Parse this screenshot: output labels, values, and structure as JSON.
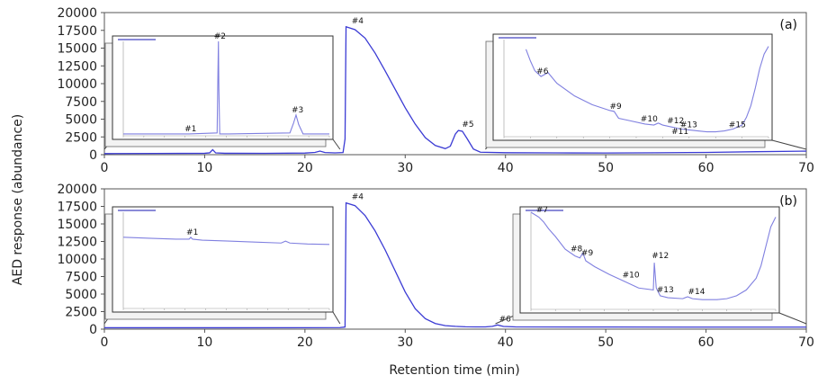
{
  "figure": {
    "ylabel": "AED response (abundance)",
    "xlabel": "Retention time (min)"
  },
  "chart_data": [
    {
      "type": "line",
      "panel_label": "(a)",
      "xlim": [
        0,
        70
      ],
      "ylim": [
        0,
        20000
      ],
      "xticks": [
        0,
        10,
        20,
        30,
        40,
        50,
        60,
        70
      ],
      "yticks": [
        0,
        2500,
        5000,
        7500,
        10000,
        12500,
        15000,
        17500,
        20000
      ],
      "series": [
        {
          "color": "#3b3bd4",
          "x": [
            0,
            5,
            10,
            10.5,
            10.8,
            11.1,
            12,
            16,
            20,
            21,
            21.5,
            22,
            23,
            23.8,
            24,
            24.1,
            25,
            26,
            27,
            28,
            29,
            30,
            31,
            32,
            33,
            34,
            34.5,
            35,
            35.3,
            35.7,
            36.2,
            36.8,
            37.5,
            40,
            45,
            50,
            55,
            60,
            65,
            70
          ],
          "y": [
            150,
            170,
            200,
            260,
            700,
            250,
            200,
            190,
            230,
            320,
            500,
            300,
            250,
            300,
            2200,
            18000,
            17600,
            16400,
            14300,
            11800,
            9200,
            6600,
            4300,
            2400,
            1300,
            850,
            1200,
            2900,
            3400,
            3300,
            2200,
            800,
            350,
            280,
            250,
            240,
            270,
            320,
            420,
            500
          ]
        }
      ],
      "peak_labels": [
        {
          "label": "#4",
          "x": 24.3,
          "y": 18000
        },
        {
          "label": "#5",
          "x": 35.3,
          "y": 3400
        }
      ],
      "insets": [
        {
          "xlim": [
            0,
            23.5
          ],
          "source_xrange": [
            0,
            23.5
          ],
          "x": [
            0,
            7.5,
            10.7,
            10.8,
            10.85,
            10.9,
            11.0,
            12,
            19.0,
            19.4,
            19.7,
            20.0,
            20.5,
            23.5
          ],
          "y": [
            0.02,
            0.02,
            0.03,
            0.7,
            1.0,
            0.5,
            0.02,
            0.02,
            0.03,
            0.13,
            0.22,
            0.12,
            0.02,
            0.02
          ],
          "labels": [
            {
              "label": "#1",
              "x": 7.5,
              "y": 0.02
            },
            {
              "label": "#2",
              "x": 10.85,
              "y": 1.0
            },
            {
              "label": "#3",
              "x": 19.7,
              "y": 0.22
            }
          ]
        },
        {
          "xlim": [
            40,
            70
          ],
          "source_xrange": [
            38,
            70
          ],
          "x": [
            42.5,
            43.0,
            43.5,
            44.2,
            45.0,
            46.0,
            48.0,
            50.0,
            52.0,
            52.5,
            53.0,
            54.0,
            56.0,
            57.0,
            57.5,
            58.0,
            59.0,
            60.0,
            62.0,
            63.0,
            64.0,
            65.0,
            66.0,
            67.0,
            67.5,
            68.0,
            68.5,
            69.0,
            69.5,
            70.0
          ],
          "y": [
            0.9,
            0.78,
            0.68,
            0.62,
            0.66,
            0.55,
            0.42,
            0.33,
            0.27,
            0.26,
            0.19,
            0.17,
            0.13,
            0.12,
            0.14,
            0.12,
            0.1,
            0.08,
            0.06,
            0.05,
            0.05,
            0.06,
            0.08,
            0.12,
            0.2,
            0.32,
            0.5,
            0.7,
            0.85,
            0.93
          ],
          "labels": [
            {
              "label": "#6",
              "x": 44.2,
              "y": 0.62
            },
            {
              "label": "#9",
              "x": 52.5,
              "y": 0.26
            },
            {
              "label": "#10",
              "x": 56.0,
              "y": 0.13
            },
            {
              "label": "#12",
              "x": 59.0,
              "y": 0.11
            },
            {
              "label": "#13",
              "x": 60.5,
              "y": 0.07
            },
            {
              "label": "#11",
              "x": 59.5,
              "y": 0.0
            },
            {
              "label": "#15",
              "x": 66.0,
              "y": 0.07
            }
          ]
        }
      ]
    },
    {
      "type": "line",
      "panel_label": "(b)",
      "xlim": [
        0,
        70
      ],
      "ylim": [
        0,
        20000
      ],
      "xticks": [
        0,
        10,
        20,
        30,
        40,
        50,
        60,
        70
      ],
      "yticks": [
        0,
        2500,
        5000,
        7500,
        10000,
        12500,
        15000,
        17500,
        20000
      ],
      "series": [
        {
          "color": "#3b3bd4",
          "x": [
            0,
            10,
            20,
            23.5,
            24.0,
            24.1,
            25,
            26,
            27,
            28,
            29,
            30,
            31,
            32,
            33,
            34,
            35,
            36,
            37,
            38,
            38.7,
            39.2,
            39.8,
            41,
            50,
            60,
            70
          ],
          "y": [
            200,
            200,
            210,
            220,
            300,
            18000,
            17600,
            16200,
            14000,
            11300,
            8300,
            5300,
            2900,
            1500,
            800,
            500,
            400,
            340,
            320,
            320,
            400,
            600,
            380,
            320,
            300,
            290,
            290
          ]
        }
      ],
      "peak_labels": [
        {
          "label": "#4",
          "x": 24.3,
          "y": 18000
        },
        {
          "label": "#6",
          "x": 39.0,
          "y": 600
        }
      ],
      "insets": [
        {
          "xlim": [
            0,
            23.5
          ],
          "source_xrange": [
            0,
            23.5
          ],
          "x": [
            0,
            3,
            6,
            7.5,
            7.7,
            7.9,
            9,
            12,
            15,
            18,
            18.5,
            19,
            21,
            23.5
          ],
          "y": [
            0.74,
            0.73,
            0.72,
            0.72,
            0.74,
            0.72,
            0.71,
            0.7,
            0.69,
            0.68,
            0.7,
            0.68,
            0.67,
            0.665
          ],
          "labels": [
            {
              "label": "#1",
              "x": 7.7,
              "y": 0.74
            }
          ]
        },
        {
          "xlim": [
            45,
            70
          ],
          "source_xrange": [
            39,
            70
          ],
          "x": [
            45.0,
            45.8,
            46.3,
            46.8,
            47.5,
            48.5,
            49.5,
            50.0,
            50.3,
            50.6,
            51.5,
            53.0,
            54.5,
            56.0,
            57.5,
            57.6,
            57.8,
            58.2,
            59.0,
            60.5,
            61.0,
            61.5,
            62.5,
            64.0,
            65.0,
            66.0,
            67.0,
            68.0,
            68.5,
            69.0,
            69.5,
            70.0
          ],
          "y": [
            1.0,
            0.95,
            0.9,
            0.83,
            0.75,
            0.62,
            0.55,
            0.53,
            0.58,
            0.5,
            0.44,
            0.36,
            0.29,
            0.22,
            0.2,
            0.48,
            0.22,
            0.14,
            0.12,
            0.11,
            0.13,
            0.11,
            0.1,
            0.1,
            0.11,
            0.14,
            0.2,
            0.32,
            0.45,
            0.65,
            0.85,
            0.95
          ],
          "labels": [
            {
              "label": "#7",
              "x": 46.0,
              "y": 0.97
            },
            {
              "label": "#8",
              "x": 49.5,
              "y": 0.57
            },
            {
              "label": "#9",
              "x": 50.6,
              "y": 0.53
            },
            {
              "label": "#10",
              "x": 54.8,
              "y": 0.3
            },
            {
              "label": "#12",
              "x": 57.8,
              "y": 0.5
            },
            {
              "label": "#13",
              "x": 58.3,
              "y": 0.15
            },
            {
              "label": "#14",
              "x": 61.5,
              "y": 0.13
            }
          ]
        }
      ]
    }
  ]
}
